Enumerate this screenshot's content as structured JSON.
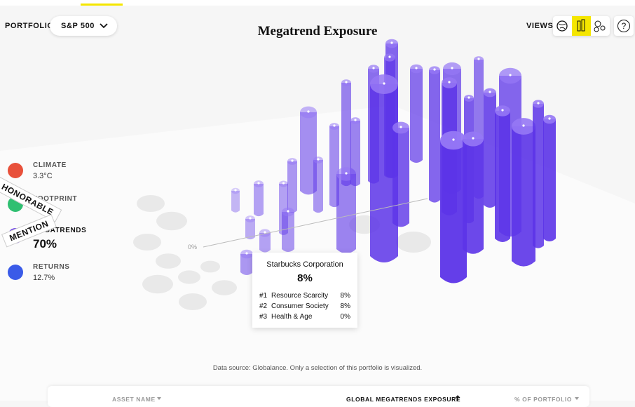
{
  "header": {
    "portfolio_label": "PORTFOLIO",
    "portfolio_value": "S&P 500",
    "title": "Megatrend Exposure",
    "views_label": "VIEWS",
    "help": "?"
  },
  "metrics": [
    {
      "label": "CLIMATE",
      "value": "3.3°C"
    },
    {
      "label": "FOOTPRINT"
    },
    {
      "label": "MEGATRENDS",
      "value": "70%"
    },
    {
      "label": "RETURNS",
      "value": "12.7%"
    }
  ],
  "ribbon": [
    "HONORABLE",
    "MENTION"
  ],
  "axis_label": "0%",
  "tooltip": {
    "name": "Starbucks Corporation",
    "value": "8%",
    "rows": [
      [
        "#1",
        "Resource Scarcity",
        "8%"
      ],
      [
        "#2",
        "Consumer Society",
        "8%"
      ],
      [
        "#3",
        "Health & Age",
        "0%"
      ]
    ]
  },
  "footnote": "Data source: Globalance. Only a selection of this portfolio is visualized.",
  "table": {
    "columns": [
      "ASSET NAME",
      "GLOBAL MEGATRENDS EXPOSURE",
      "% OF PORTFOLIO"
    ]
  }
}
